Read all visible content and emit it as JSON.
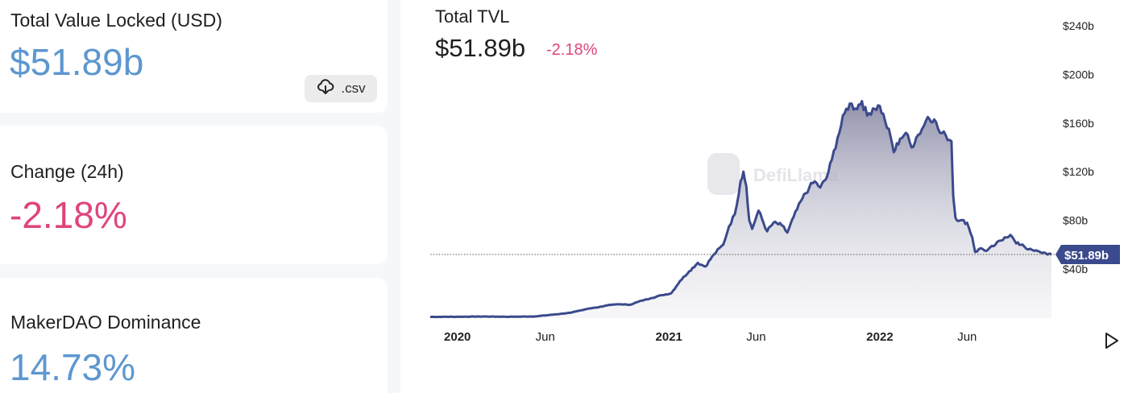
{
  "cards": {
    "tvl": {
      "label": "Total Value Locked (USD)",
      "value": "$51.89b",
      "csv_label": ".csv"
    },
    "change": {
      "label": "Change (24h)",
      "value": "-2.18%"
    },
    "dominance": {
      "label": "MakerDAO Dominance",
      "value": "14.73%"
    }
  },
  "chart_header": {
    "title": "Total TVL",
    "value": "$51.89b",
    "change": "-2.18%"
  },
  "colors": {
    "accent_blue": "#5d97d0",
    "negative_pink": "#e0437d",
    "line": "#3b4a8c",
    "area": "#9a9ab3"
  },
  "chart_data": {
    "type": "area",
    "title": "Total TVL",
    "ylabel": "",
    "xlabel": "",
    "y_ticks": [
      "$40b",
      "$80b",
      "$120b",
      "$160b",
      "$200b",
      "$240b"
    ],
    "y_tick_values": [
      40,
      80,
      120,
      160,
      200,
      240
    ],
    "x_ticks": [
      "2020",
      "Jun",
      "2021",
      "Jun",
      "2022",
      "Jun"
    ],
    "x_tick_dates": [
      "2020-01-01",
      "2020-06-01",
      "2021-01-01",
      "2021-06-01",
      "2022-01-01",
      "2022-06-01"
    ],
    "current_label": "$51.89b",
    "current_value": 51.89,
    "ylim": [
      0,
      250
    ],
    "series": [
      {
        "values": [
          [
            "2019-11-15",
            0.6
          ],
          [
            "2020-01-01",
            0.7
          ],
          [
            "2020-02-15",
            0.9
          ],
          [
            "2020-04-01",
            0.7
          ],
          [
            "2020-05-15",
            1.0
          ],
          [
            "2020-06-15",
            2.5
          ],
          [
            "2020-07-15",
            4.0
          ],
          [
            "2020-08-15",
            7.5
          ],
          [
            "2020-09-01",
            8.5
          ],
          [
            "2020-09-20",
            10.5
          ],
          [
            "2020-10-10",
            11.0
          ],
          [
            "2020-10-25",
            10.5
          ],
          [
            "2020-11-15",
            14.0
          ],
          [
            "2020-12-01",
            16.0
          ],
          [
            "2020-12-20",
            18.5
          ],
          [
            "2021-01-05",
            20.0
          ],
          [
            "2021-01-20",
            30.0
          ],
          [
            "2021-02-05",
            38.0
          ],
          [
            "2021-02-20",
            45.0
          ],
          [
            "2021-03-05",
            42.0
          ],
          [
            "2021-03-20",
            52.0
          ],
          [
            "2021-04-05",
            60.0
          ],
          [
            "2021-04-15",
            75.0
          ],
          [
            "2021-04-25",
            85.0
          ],
          [
            "2021-05-05",
            112.0
          ],
          [
            "2021-05-10",
            120.0
          ],
          [
            "2021-05-15",
            108.0
          ],
          [
            "2021-05-20",
            80.0
          ],
          [
            "2021-05-25",
            73.0
          ],
          [
            "2021-06-05",
            88.0
          ],
          [
            "2021-06-20",
            71.0
          ],
          [
            "2021-07-01",
            78.0
          ],
          [
            "2021-07-15",
            76.0
          ],
          [
            "2021-07-25",
            70.0
          ],
          [
            "2021-08-05",
            83.0
          ],
          [
            "2021-08-20",
            98.0
          ],
          [
            "2021-09-01",
            107.0
          ],
          [
            "2021-09-10",
            112.0
          ],
          [
            "2021-09-20",
            107.0
          ],
          [
            "2021-10-01",
            115.0
          ],
          [
            "2021-10-10",
            130.0
          ],
          [
            "2021-10-20",
            148.0
          ],
          [
            "2021-11-01",
            168.0
          ],
          [
            "2021-11-10",
            176.0
          ],
          [
            "2021-11-20",
            172.0
          ],
          [
            "2021-12-01",
            178.0
          ],
          [
            "2021-12-10",
            166.0
          ],
          [
            "2021-12-20",
            172.0
          ],
          [
            "2022-01-01",
            174.0
          ],
          [
            "2022-01-10",
            162.0
          ],
          [
            "2022-01-20",
            148.0
          ],
          [
            "2022-01-25",
            136.0
          ],
          [
            "2022-02-05",
            147.0
          ],
          [
            "2022-02-15",
            152.0
          ],
          [
            "2022-02-25",
            140.0
          ],
          [
            "2022-03-05",
            148.0
          ],
          [
            "2022-03-15",
            155.0
          ],
          [
            "2022-03-25",
            165.0
          ],
          [
            "2022-04-05",
            163.0
          ],
          [
            "2022-04-15",
            152.0
          ],
          [
            "2022-04-25",
            150.0
          ],
          [
            "2022-05-05",
            145.0
          ],
          [
            "2022-05-08",
            100.0
          ],
          [
            "2022-05-12",
            82.0
          ],
          [
            "2022-05-20",
            80.0
          ],
          [
            "2022-06-01",
            78.0
          ],
          [
            "2022-06-10",
            66.0
          ],
          [
            "2022-06-15",
            54.0
          ],
          [
            "2022-06-25",
            57.0
          ],
          [
            "2022-07-05",
            55.0
          ],
          [
            "2022-07-20",
            60.0
          ],
          [
            "2022-08-05",
            66.0
          ],
          [
            "2022-08-15",
            68.0
          ],
          [
            "2022-08-25",
            61.0
          ],
          [
            "2022-09-05",
            60.0
          ],
          [
            "2022-09-15",
            56.0
          ],
          [
            "2022-09-25",
            55.0
          ],
          [
            "2022-10-05",
            54.0
          ],
          [
            "2022-10-15",
            53.0
          ],
          [
            "2022-10-25",
            51.89
          ]
        ]
      }
    ]
  }
}
